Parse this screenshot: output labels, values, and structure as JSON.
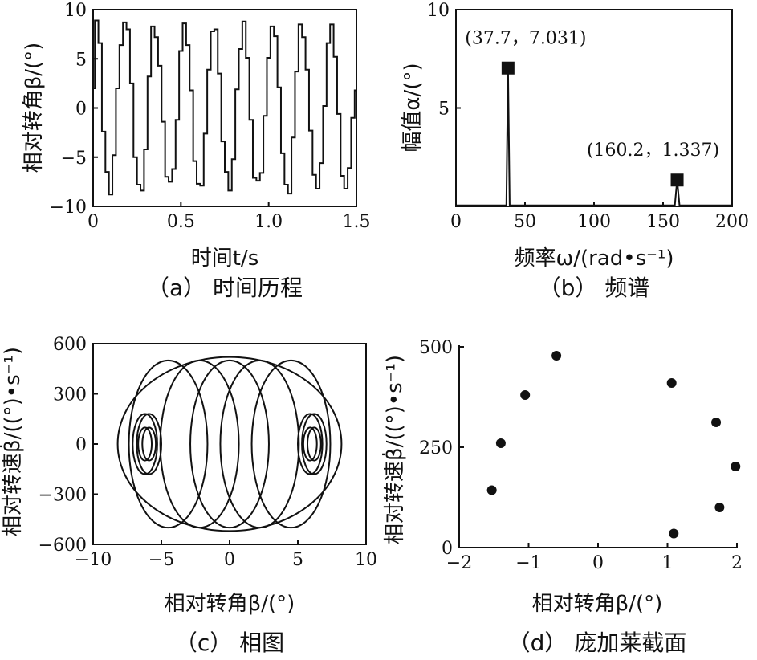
{
  "chart_data": [
    {
      "id": "a",
      "type": "line",
      "caption": "（a） 时间历程",
      "xlabel": "时间t/s",
      "ylabel": "相对转角β/(°)",
      "xlim": [
        0,
        1.5
      ],
      "ylim": [
        -10,
        10
      ],
      "xticks": [
        "0",
        "0.5",
        "1.0",
        "1.5"
      ],
      "yticks": [
        "−10",
        "−5",
        "0",
        "5",
        "10"
      ],
      "series": [
        {
          "x": [
            0.0,
            0.02,
            0.04,
            0.06,
            0.08,
            0.1,
            0.12,
            0.14,
            0.16,
            0.18,
            0.2,
            0.22,
            0.24,
            0.26,
            0.28,
            0.3,
            0.32,
            0.34,
            0.36,
            0.38,
            0.4,
            0.42,
            0.44,
            0.46,
            0.48,
            0.5,
            0.52,
            0.54,
            0.56,
            0.58,
            0.6,
            0.62,
            0.64,
            0.66,
            0.68,
            0.7,
            0.72,
            0.74,
            0.76,
            0.78,
            0.8,
            0.82,
            0.84,
            0.86,
            0.88,
            0.9,
            0.92,
            0.94,
            0.96,
            0.98,
            1.0,
            1.02,
            1.04,
            1.06,
            1.08,
            1.1,
            1.12,
            1.14,
            1.16,
            1.18,
            1.2,
            1.22,
            1.24,
            1.26,
            1.28,
            1.3,
            1.32,
            1.34,
            1.36,
            1.38,
            1.4,
            1.42,
            1.44,
            1.46,
            1.48,
            1.5
          ],
          "y": [
            2.0,
            8.9,
            6.6,
            -2.4,
            -6.5,
            -8.8,
            -4.8,
            2.0,
            6.4,
            8.7,
            8.0,
            2.5,
            -5.0,
            -7.8,
            -8.4,
            -4.2,
            3.2,
            8.3,
            7.2,
            4.3,
            -1.4,
            -7.0,
            -7.5,
            -6.2,
            -1.2,
            5.8,
            8.6,
            6.4,
            1.8,
            -5.4,
            -7.7,
            -7.9,
            -2.6,
            3.9,
            7.8,
            8.0,
            3.5,
            -3.4,
            -6.5,
            -8.4,
            -5.2,
            1.9,
            6.0,
            8.8,
            5.1,
            -1.2,
            -7.1,
            -7.4,
            -6.6,
            -0.8,
            5.1,
            8.3,
            7.3,
            2.1,
            -4.6,
            -7.8,
            -8.7,
            -3.0,
            3.7,
            8.5,
            7.2,
            3.9,
            -2.3,
            -6.8,
            -8.2,
            -5.6,
            0.2,
            6.6,
            8.5,
            5.2,
            -0.6,
            -6.9,
            -8.2,
            -6.1,
            -1.0,
            1.8
          ]
        }
      ]
    },
    {
      "id": "b",
      "type": "line",
      "caption": "（b） 频谱",
      "xlabel": "频率ω/(rad•s⁻¹)",
      "ylabel": "幅值α/(°)",
      "xlim": [
        0,
        200
      ],
      "ylim": [
        0,
        10
      ],
      "xticks": [
        "0",
        "50",
        "100",
        "150",
        "200"
      ],
      "yticks": [
        "5",
        "10"
      ],
      "series": [
        {
          "x": [
            0,
            36.5,
            37.7,
            38.9,
            158.5,
            160.2,
            161.9,
            200
          ],
          "y": [
            0.05,
            0.05,
            7.031,
            0.05,
            0.05,
            1.337,
            0.05,
            0.05
          ]
        }
      ],
      "peaks": [
        {
          "x": 37.7,
          "y": 7.031,
          "label": "(37.7，7.031)"
        },
        {
          "x": 160.2,
          "y": 1.337,
          "label": "(160.2，1.337)"
        }
      ]
    },
    {
      "id": "c",
      "type": "line",
      "caption": "（c） 相图",
      "xlabel": "相对转角β/(°)",
      "ylabel": "相对转速β̇/((°)•s⁻¹)",
      "xlim": [
        -10,
        10
      ],
      "ylim": [
        -600,
        600
      ],
      "xticks": [
        "−10",
        "−5",
        "0",
        "5",
        "10"
      ],
      "yticks": [
        "−600",
        "−300",
        "0",
        "300",
        "600"
      ],
      "series": [
        {
          "shape": "phase-orbits",
          "centers": [
            -6.2,
            -5.9,
            -4.5,
            -2.2,
            0,
            2.2,
            4.5,
            5.9,
            6.2
          ],
          "amplitude": 1.8,
          "ymax": 500,
          "outer_x": 8.2,
          "outer_y": 520
        }
      ]
    },
    {
      "id": "d",
      "type": "scatter",
      "caption": "（d） 庞加莱截面",
      "xlabel": "相对转角β/(°)",
      "ylabel": "相对转速β̇/((°)•s⁻¹)",
      "xlim": [
        -2,
        2
      ],
      "ylim": [
        0,
        500
      ],
      "xticks": [
        "−2",
        "−1",
        "0",
        "1",
        "2"
      ],
      "yticks": [
        "0",
        "250",
        "500"
      ],
      "series": [
        {
          "x": [
            -0.6,
            -1.05,
            -1.4,
            -1.53,
            1.06,
            1.7,
            1.98,
            1.75,
            1.09
          ],
          "y": [
            478,
            380,
            260,
            143,
            410,
            312,
            202,
            100,
            35
          ]
        }
      ]
    }
  ]
}
